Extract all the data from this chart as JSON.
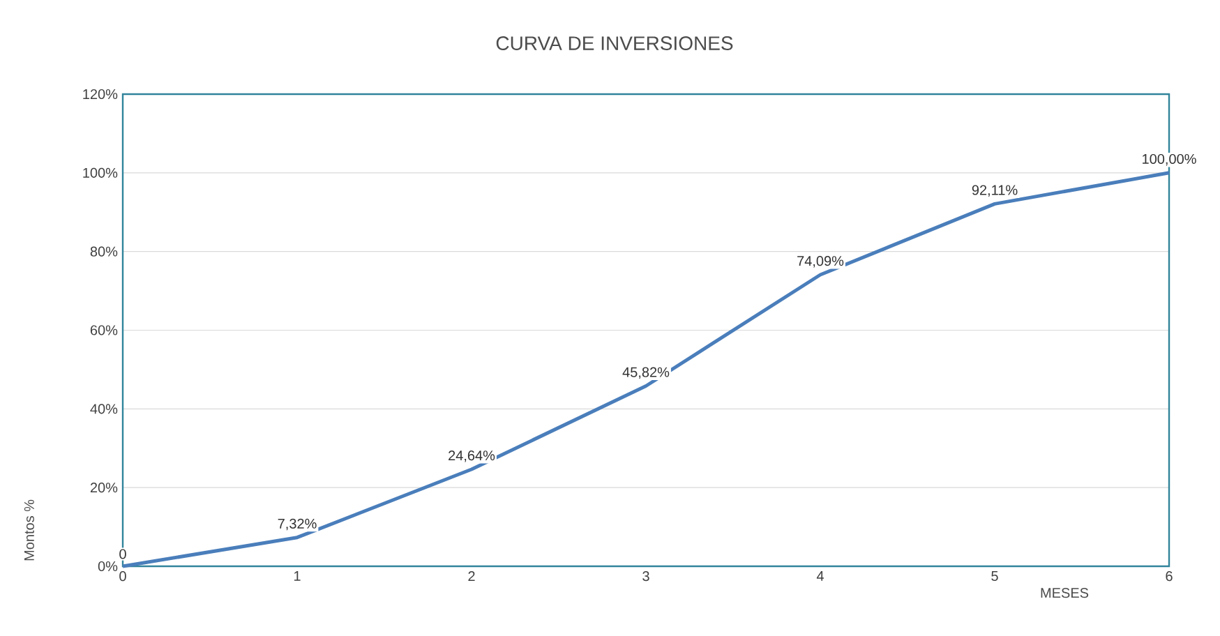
{
  "chart_data": {
    "type": "line",
    "title": "CURVA DE INVERSIONES",
    "xlabel": "MESES",
    "ylabel": "Montos %",
    "x": [
      0,
      1,
      2,
      3,
      4,
      5,
      6
    ],
    "values": [
      0,
      7.32,
      24.64,
      45.82,
      74.09,
      92.11,
      100
    ],
    "value_labels": [
      "0",
      "7,32%",
      "24,64%",
      "45,82%",
      "74,09%",
      "92,11%",
      "100,00%"
    ],
    "color": "#4a7ebb",
    "xlim": [
      0,
      6
    ],
    "xticks": [
      0,
      1,
      2,
      3,
      4,
      5,
      6
    ],
    "ylim": [
      0,
      120
    ],
    "yticks": [
      {
        "value": 0,
        "label": "0%"
      },
      {
        "value": 20,
        "label": "20%"
      },
      {
        "value": 40,
        "label": "40%"
      },
      {
        "value": 60,
        "label": "60%"
      },
      {
        "value": 80,
        "label": "80%"
      },
      {
        "value": 100,
        "label": "100%"
      },
      {
        "value": 120,
        "label": "120%"
      }
    ],
    "grid": "y"
  }
}
